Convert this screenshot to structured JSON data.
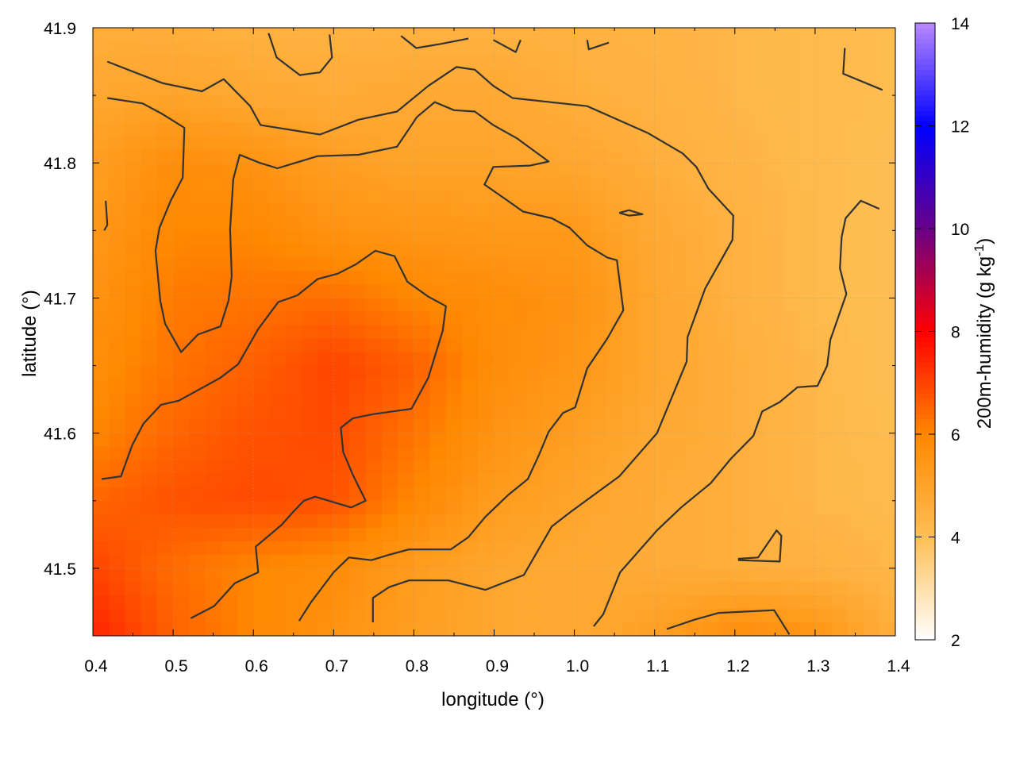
{
  "chart_data": {
    "type": "heatmap",
    "xlabel": "longitude (°)",
    "ylabel": "latitude (°)",
    "colorbar_label": "200m-humidity (g kg",
    "colorbar_label_sup": "-1",
    "colorbar_label_end": ")",
    "xlim": [
      0.4,
      1.4
    ],
    "ylim": [
      41.45,
      41.9
    ],
    "clim": [
      2,
      14
    ],
    "x_ticks": [
      "0.4",
      "0.5",
      "0.6",
      "0.7",
      "0.8",
      "0.9",
      "1.0",
      "1.1",
      "1.2",
      "1.3",
      "1.4"
    ],
    "y_ticks": [
      "41.5",
      "41.6",
      "41.7",
      "41.8",
      "41.9"
    ],
    "colorbar_ticks": [
      "2",
      "4",
      "6",
      "8",
      "10",
      "12",
      "14"
    ],
    "grid": true,
    "colormap": [
      {
        "v": 2,
        "c": "#ffffff"
      },
      {
        "v": 4,
        "c": "#ffbf55"
      },
      {
        "v": 6,
        "c": "#ff8800"
      },
      {
        "v": 8,
        "c": "#ff0000"
      },
      {
        "v": 10,
        "c": "#6a0088"
      },
      {
        "v": 12,
        "c": "#0000ff"
      },
      {
        "v": 14,
        "c": "#b888ff"
      }
    ],
    "grid_lon": [
      0.4,
      0.5,
      0.6,
      0.7,
      0.8,
      0.9,
      1.0,
      1.1,
      1.2,
      1.3,
      1.4
    ],
    "grid_lat": [
      41.9,
      41.85,
      41.8,
      41.75,
      41.7,
      41.65,
      41.6,
      41.55,
      41.5,
      41.45
    ],
    "values": [
      [
        4.6,
        4.6,
        4.5,
        4.5,
        4.5,
        4.5,
        4.5,
        4.4,
        4.3,
        4.2,
        4.1
      ],
      [
        4.9,
        5.0,
        4.8,
        4.7,
        4.8,
        4.8,
        4.6,
        4.5,
        4.3,
        4.2,
        4.1
      ],
      [
        5.2,
        5.8,
        5.6,
        5.2,
        5.0,
        5.0,
        4.9,
        4.6,
        4.4,
        4.2,
        4.0
      ],
      [
        5.4,
        6.0,
        6.0,
        5.6,
        5.5,
        5.4,
        5.4,
        4.8,
        4.5,
        4.2,
        4.0
      ],
      [
        5.6,
        6.2,
        6.3,
        6.4,
        6.0,
        5.8,
        5.6,
        4.9,
        4.5,
        4.2,
        4.0
      ],
      [
        5.8,
        6.3,
        6.6,
        7.0,
        6.6,
        5.8,
        5.5,
        4.9,
        4.6,
        4.3,
        4.0
      ],
      [
        6.0,
        6.5,
        6.8,
        6.9,
        6.3,
        5.6,
        5.2,
        4.8,
        4.6,
        4.3,
        4.1
      ],
      [
        6.5,
        6.8,
        6.9,
        6.8,
        6.0,
        5.3,
        5.0,
        4.7,
        4.6,
        4.3,
        4.2
      ],
      [
        7.0,
        6.4,
        6.0,
        5.8,
        5.3,
        4.9,
        4.8,
        4.7,
        4.6,
        4.5,
        4.3
      ],
      [
        7.5,
        6.6,
        6.0,
        5.6,
        5.2,
        4.9,
        4.8,
        5.2,
        5.8,
        5.6,
        4.6
      ]
    ],
    "contour_color": "#333333",
    "contours": [
      [
        [
          0.418,
          41.875
        ],
        [
          0.487,
          41.859
        ],
        [
          0.536,
          41.853
        ],
        [
          0.563,
          41.862
        ],
        [
          0.596,
          41.842
        ],
        [
          0.609,
          41.828
        ],
        [
          0.683,
          41.821
        ],
        [
          0.731,
          41.832
        ],
        [
          0.779,
          41.838
        ],
        [
          0.818,
          41.857
        ],
        [
          0.853,
          41.871
        ],
        [
          0.876,
          41.869
        ],
        [
          0.899,
          41.857
        ],
        [
          0.923,
          41.848
        ],
        [
          1.016,
          41.842
        ],
        [
          1.092,
          41.822
        ],
        [
          1.135,
          41.807
        ],
        [
          1.152,
          41.797
        ],
        [
          1.167,
          41.781
        ],
        [
          1.198,
          41.761
        ],
        [
          1.197,
          41.743
        ],
        [
          1.163,
          41.707
        ],
        [
          1.141,
          41.671
        ],
        [
          1.14,
          41.653
        ],
        [
          1.103,
          41.6
        ],
        [
          1.056,
          41.568
        ],
        [
          0.996,
          41.542
        ],
        [
          0.972,
          41.531
        ],
        [
          0.937,
          41.495
        ],
        [
          0.889,
          41.484
        ],
        [
          0.843,
          41.491
        ],
        [
          0.794,
          41.491
        ],
        [
          0.769,
          41.486
        ],
        [
          0.749,
          41.478
        ],
        [
          0.749,
          41.46
        ]
      ],
      [
        [
          0.418,
          41.848
        ],
        [
          0.462,
          41.844
        ],
        [
          0.487,
          41.836
        ],
        [
          0.514,
          41.826
        ],
        [
          0.512,
          41.789
        ],
        [
          0.497,
          41.772
        ],
        [
          0.483,
          41.752
        ],
        [
          0.478,
          41.735
        ],
        [
          0.484,
          41.698
        ],
        [
          0.49,
          41.681
        ],
        [
          0.51,
          41.66
        ],
        [
          0.531,
          41.673
        ],
        [
          0.559,
          41.679
        ],
        [
          0.569,
          41.698
        ],
        [
          0.573,
          41.716
        ],
        [
          0.571,
          41.751
        ],
        [
          0.575,
          41.788
        ],
        [
          0.583,
          41.806
        ],
        [
          0.608,
          41.8
        ],
        [
          0.63,
          41.796
        ],
        [
          0.68,
          41.805
        ],
        [
          0.731,
          41.806
        ],
        [
          0.779,
          41.812
        ],
        [
          0.804,
          41.834
        ],
        [
          0.826,
          41.845
        ],
        [
          0.85,
          41.839
        ],
        [
          0.876,
          41.838
        ],
        [
          0.899,
          41.828
        ],
        [
          0.929,
          41.818
        ],
        [
          0.968,
          41.801
        ],
        [
          0.945,
          41.798
        ],
        [
          0.899,
          41.797
        ],
        [
          0.888,
          41.784
        ],
        [
          0.917,
          41.772
        ],
        [
          0.936,
          41.764
        ],
        [
          0.972,
          41.759
        ],
        [
          0.994,
          41.752
        ],
        [
          1.016,
          41.739
        ],
        [
          1.041,
          41.73
        ],
        [
          1.053,
          41.728
        ],
        [
          1.061,
          41.691
        ],
        [
          1.041,
          41.67
        ],
        [
          1.016,
          41.648
        ],
        [
          1.001,
          41.619
        ],
        [
          0.986,
          41.615
        ],
        [
          0.968,
          41.601
        ],
        [
          0.956,
          41.584
        ],
        [
          0.942,
          41.566
        ],
        [
          0.917,
          41.554
        ],
        [
          0.889,
          41.538
        ],
        [
          0.868,
          41.523
        ],
        [
          0.846,
          41.514
        ],
        [
          0.794,
          41.514
        ],
        [
          0.769,
          41.51
        ],
        [
          0.747,
          41.506
        ],
        [
          0.719,
          41.508
        ],
        [
          0.7,
          41.497
        ],
        [
          0.672,
          41.475
        ],
        [
          0.657,
          41.461
        ]
      ],
      [
        [
          0.411,
          41.566
        ],
        [
          0.435,
          41.568
        ],
        [
          0.449,
          41.591
        ],
        [
          0.463,
          41.607
        ],
        [
          0.485,
          41.621
        ],
        [
          0.507,
          41.624
        ],
        [
          0.559,
          41.641
        ],
        [
          0.581,
          41.651
        ],
        [
          0.606,
          41.677
        ],
        [
          0.631,
          41.697
        ],
        [
          0.655,
          41.702
        ],
        [
          0.68,
          41.714
        ],
        [
          0.705,
          41.718
        ],
        [
          0.728,
          41.725
        ],
        [
          0.752,
          41.735
        ],
        [
          0.776,
          41.731
        ],
        [
          0.792,
          41.712
        ],
        [
          0.818,
          41.701
        ],
        [
          0.84,
          41.694
        ],
        [
          0.836,
          41.676
        ],
        [
          0.818,
          41.641
        ],
        [
          0.797,
          41.618
        ],
        [
          0.749,
          41.614
        ],
        [
          0.724,
          41.611
        ],
        [
          0.709,
          41.604
        ],
        [
          0.712,
          41.586
        ],
        [
          0.724,
          41.569
        ],
        [
          0.74,
          41.55
        ],
        [
          0.722,
          41.545
        ],
        [
          0.677,
          41.553
        ],
        [
          0.663,
          41.55
        ],
        [
          0.65,
          41.542
        ],
        [
          0.635,
          41.532
        ],
        [
          0.603,
          41.516
        ],
        [
          0.606,
          41.497
        ],
        [
          0.577,
          41.489
        ],
        [
          0.551,
          41.472
        ],
        [
          0.522,
          41.463
        ]
      ],
      [
        [
          1.024,
          41.457
        ],
        [
          1.036,
          41.466
        ],
        [
          1.057,
          41.497
        ],
        [
          1.103,
          41.528
        ],
        [
          1.133,
          41.545
        ],
        [
          1.17,
          41.563
        ],
        [
          1.195,
          41.581
        ],
        [
          1.223,
          41.598
        ],
        [
          1.234,
          41.616
        ],
        [
          1.256,
          41.623
        ],
        [
          1.278,
          41.634
        ],
        [
          1.303,
          41.635
        ],
        [
          1.315,
          41.65
        ],
        [
          1.319,
          41.669
        ],
        [
          1.339,
          41.703
        ],
        [
          1.331,
          41.722
        ],
        [
          1.333,
          41.745
        ],
        [
          1.338,
          41.759
        ],
        [
          1.357,
          41.772
        ],
        [
          1.38,
          41.766
        ]
      ],
      [
        [
          1.115,
          41.455
        ],
        [
          1.15,
          41.462
        ],
        [
          1.18,
          41.467
        ],
        [
          1.249,
          41.469
        ],
        [
          1.268,
          41.451
        ]
      ],
      [
        [
          1.204,
          41.507
        ],
        [
          1.229,
          41.508
        ],
        [
          1.252,
          41.528
        ],
        [
          1.258,
          41.524
        ],
        [
          1.256,
          41.505
        ],
        [
          1.204,
          41.506
        ]
      ],
      [
        [
          0.619,
          41.896
        ],
        [
          0.629,
          41.878
        ],
        [
          0.658,
          41.865
        ],
        [
          0.683,
          41.867
        ],
        [
          0.698,
          41.878
        ],
        [
          0.695,
          41.895
        ]
      ],
      [
        [
          0.784,
          41.894
        ],
        [
          0.803,
          41.885
        ],
        [
          0.833,
          41.888
        ],
        [
          0.868,
          41.892
        ]
      ],
      [
        [
          0.899,
          41.891
        ],
        [
          0.927,
          41.882
        ],
        [
          0.933,
          41.891
        ]
      ],
      [
        [
          1.016,
          41.891
        ],
        [
          1.018,
          41.884
        ],
        [
          1.043,
          41.889
        ]
      ],
      [
        [
          1.337,
          41.885
        ],
        [
          1.335,
          41.866
        ],
        [
          1.384,
          41.854
        ]
      ],
      [
        [
          0.416,
          41.772
        ],
        [
          0.418,
          41.754
        ],
        [
          0.414,
          41.75
        ]
      ],
      [
        [
          1.056,
          41.763
        ],
        [
          1.068,
          41.765
        ],
        [
          1.085,
          41.762
        ],
        [
          1.068,
          41.761
        ],
        [
          1.056,
          41.763
        ]
      ]
    ]
  }
}
